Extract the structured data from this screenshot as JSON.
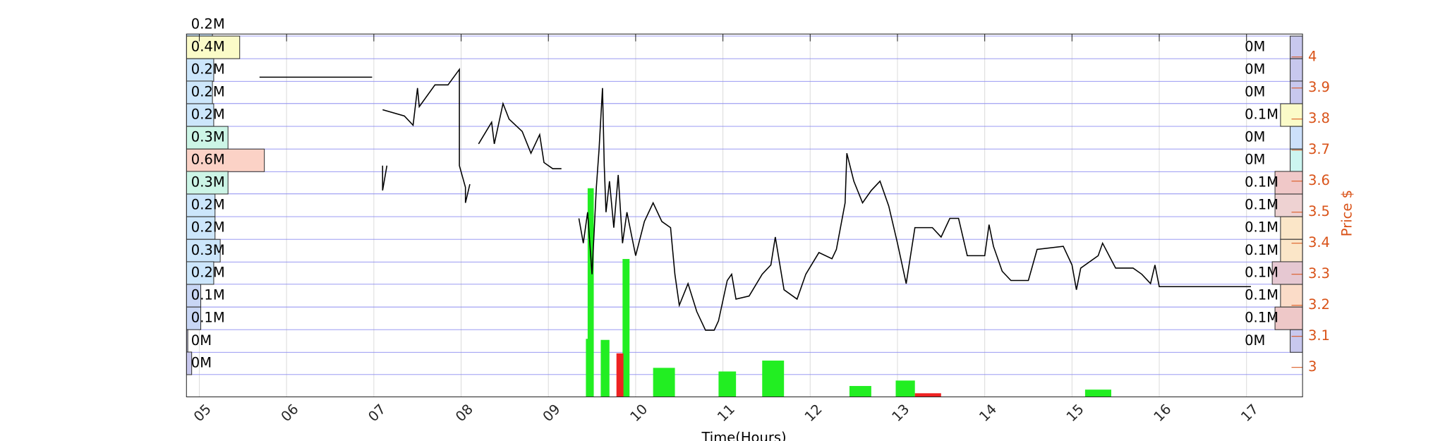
{
  "chart_data": {
    "type": "line",
    "x_label": "Time(Hours)",
    "y2_label": "Price $",
    "xlim": [
      4.853,
      17.642
    ],
    "xticks": [
      {
        "value": 5,
        "label": "05"
      },
      {
        "value": 6,
        "label": "06"
      },
      {
        "value": 7,
        "label": "07"
      },
      {
        "value": 8,
        "label": "08"
      },
      {
        "value": 9,
        "label": "09"
      },
      {
        "value": 10,
        "label": "10"
      },
      {
        "value": 11,
        "label": "11"
      },
      {
        "value": 12,
        "label": "12"
      },
      {
        "value": 13,
        "label": "13"
      },
      {
        "value": 14,
        "label": "14"
      },
      {
        "value": 15,
        "label": "15"
      },
      {
        "value": 16,
        "label": "16"
      },
      {
        "value": 17,
        "label": "17"
      }
    ],
    "y2lim": [
      2.905,
      4.074
    ],
    "y2ticks": [
      3,
      3.1,
      3.2,
      3.3,
      3.4,
      3.5,
      3.6,
      3.7,
      3.8,
      3.9,
      4
    ],
    "y2_color": "#d95319",
    "grid": true,
    "series": [
      {
        "axis": "y2",
        "color": "#000000",
        "x": [
          5.69,
          6.98,
          null,
          7.1,
          7.1,
          7.15,
          null,
          7.1,
          7.35,
          7.45,
          7.5,
          7.52,
          7.7,
          7.85,
          7.98,
          7.98,
          8.05,
          8.05,
          8.1,
          null,
          8.2,
          8.35,
          8.38,
          8.48,
          8.55,
          8.7,
          8.8,
          8.9,
          8.95,
          9.05,
          9.15,
          null,
          9.35,
          9.4,
          9.45,
          9.5,
          9.55,
          9.58,
          9.62,
          9.64,
          9.66,
          9.7,
          9.75,
          9.8,
          9.85,
          9.9,
          9.95,
          10.0,
          10.1,
          10.2,
          10.3,
          10.4,
          10.45,
          10.5,
          10.6,
          10.7,
          10.8,
          10.9,
          10.95,
          11.05,
          11.1,
          11.15,
          11.3,
          11.45,
          11.55,
          11.6,
          11.7,
          11.85,
          11.95,
          12.1,
          12.25,
          12.3,
          12.4,
          12.42,
          12.5,
          12.6,
          12.7,
          12.8,
          12.9,
          13.0,
          13.1,
          13.2,
          13.4,
          13.5,
          13.6,
          13.7,
          13.8,
          14.0,
          14.05,
          14.1,
          14.2,
          14.3,
          14.5,
          14.6,
          14.9,
          15.0,
          15.05,
          15.1,
          15.3,
          15.35,
          15.5,
          15.7,
          15.8,
          15.9,
          15.95,
          16.0,
          17.05
        ],
        "values": [
          3.935,
          3.935,
          null,
          3.65,
          3.57,
          3.65,
          null,
          3.83,
          3.81,
          3.78,
          3.9,
          3.84,
          3.91,
          3.91,
          3.96,
          3.65,
          3.58,
          3.53,
          3.59,
          null,
          3.72,
          3.79,
          3.72,
          3.85,
          3.8,
          3.76,
          3.69,
          3.75,
          3.66,
          3.64,
          3.64,
          null,
          3.48,
          3.4,
          3.5,
          3.3,
          3.58,
          3.7,
          3.9,
          3.65,
          3.5,
          3.6,
          3.45,
          3.62,
          3.4,
          3.5,
          3.43,
          3.36,
          3.47,
          3.53,
          3.47,
          3.45,
          3.3,
          3.2,
          3.27,
          3.18,
          3.12,
          3.12,
          3.15,
          3.28,
          3.3,
          3.22,
          3.23,
          3.3,
          3.33,
          3.42,
          3.25,
          3.22,
          3.3,
          3.37,
          3.35,
          3.38,
          3.53,
          3.69,
          3.6,
          3.53,
          3.57,
          3.6,
          3.52,
          3.4,
          3.27,
          3.45,
          3.45,
          3.42,
          3.48,
          3.48,
          3.36,
          3.36,
          3.46,
          3.39,
          3.31,
          3.28,
          3.28,
          3.38,
          3.39,
          3.33,
          3.25,
          3.32,
          3.36,
          3.4,
          3.32,
          3.32,
          3.3,
          3.27,
          3.33,
          3.26,
          3.26
        ]
      }
    ],
    "volume": {
      "lim": [
        0,
        100
      ],
      "x_start": [
        9.43,
        9.45,
        9.85,
        9.6,
        9.78,
        10.2,
        10.95,
        11.45,
        12.45,
        12.98,
        15.15,
        13.2
      ],
      "x_end": [
        9.5,
        9.52,
        9.93,
        9.7,
        9.86,
        10.45,
        11.15,
        11.7,
        12.7,
        13.2,
        15.45,
        13.5
      ],
      "values": [
        16,
        57.5,
        38,
        15.7,
        12,
        8,
        7,
        10,
        3,
        4.5,
        2,
        1
      ],
      "colors": [
        "#22ee22",
        "#22ee22",
        "#22ee22",
        "#22ee22",
        "#ee2222",
        "#22ee22",
        "#22ee22",
        "#22ee22",
        "#22ee22",
        "#22ee22",
        "#22ee22",
        "#ee2222"
      ]
    },
    "profile_left": {
      "lim": [
        0,
        8.6
      ],
      "levels": [
        4.104,
        4.031,
        3.958,
        3.886,
        3.813,
        3.74,
        3.667,
        3.595,
        3.522,
        3.449,
        3.376,
        3.304,
        3.231,
        3.158,
        3.085,
        3.013
      ],
      "values": [
        0.2,
        0.41,
        0.21,
        0.2,
        0.21,
        0.32,
        0.6,
        0.32,
        0.22,
        0.22,
        0.26,
        0.21,
        0.11,
        0.11,
        0.01,
        0.04
      ],
      "value_labels": [
        "0.2M",
        "0.4M",
        "0.2M",
        "0.2M",
        "0.2M",
        "0.3M",
        "0.6M",
        "0.3M",
        "0.2M",
        "0.2M",
        "0.3M",
        "0.2M",
        "0.1M",
        "0.1M",
        "0M",
        "0M"
      ],
      "colors": [
        "#cce6fb",
        "#fbfbc8",
        "#cce6fb",
        "#cce6fb",
        "#cce6fb",
        "#ccf5e6",
        "#fbd2c6",
        "#ccf5e6",
        "#cce6fb",
        "#cce6fb",
        "#cce6fb",
        "#cce6fb",
        "#c8d6f5",
        "#c8d6f5",
        "#c8c8ee",
        "#c8c8ee"
      ]
    },
    "profile_right": {
      "lim": [
        0,
        4.05
      ],
      "levels": [
        4.031,
        3.958,
        3.886,
        3.813,
        3.74,
        3.667,
        3.595,
        3.522,
        3.449,
        3.376,
        3.304,
        3.231,
        3.158,
        3.085
      ],
      "values": [
        0.045,
        0.045,
        0.045,
        0.08,
        0.045,
        0.045,
        0.1,
        0.1,
        0.08,
        0.08,
        0.11,
        0.08,
        0.1,
        0.045
      ],
      "value_labels": [
        "0M",
        "0M",
        "0M",
        "0.1M",
        "0M",
        "0M",
        "0.1M",
        "0.1M",
        "0.1M",
        "0.1M",
        "0.1M",
        "0.1M",
        "0.1M",
        "0M"
      ],
      "colors": [
        "#c8c8ee",
        "#c8c8ee",
        "#c8c8ee",
        "#fbfbc8",
        "#cce0fb",
        "#ccf5f0",
        "#f0c8c8",
        "#eed2d2",
        "#fbe6c8",
        "#fbe6c8",
        "#e6c8d2",
        "#fbdcc8",
        "#eec8c8",
        "#c8c8ee"
      ]
    }
  }
}
